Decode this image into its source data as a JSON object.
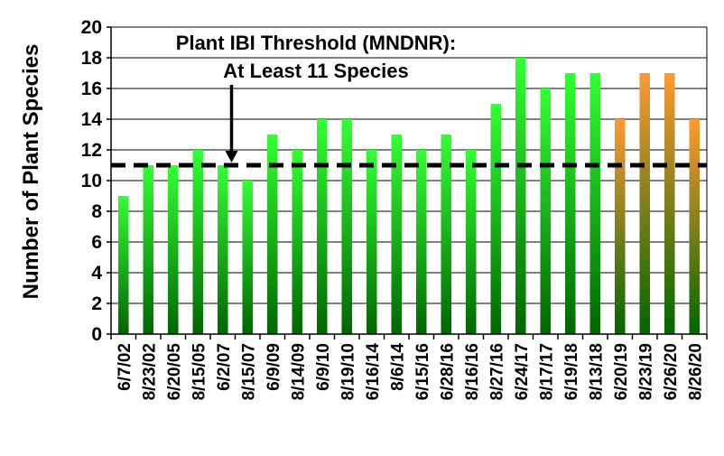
{
  "chart_data": {
    "type": "bar",
    "title": "",
    "xlabel": "",
    "ylabel": "Number of Plant Species",
    "ylim": [
      0,
      20
    ],
    "yticks": [
      0,
      2,
      4,
      6,
      8,
      10,
      12,
      14,
      16,
      18,
      20
    ],
    "grid": true,
    "legend": "none",
    "categories": [
      "6/7/02",
      "8/23/02",
      "6/20/05",
      "8/15/05",
      "6/2/07",
      "8/15/07",
      "6/9/09",
      "8/14/09",
      "6/9/10",
      "8/19/10",
      "6/16/14",
      "8/6/14",
      "6/15/16",
      "6/28/16",
      "8/16/16",
      "8/27/16",
      "6/24/17",
      "8/17/17",
      "6/19/18",
      "8/13/18",
      "6/20/19",
      "8/23/19",
      "6/26/20",
      "8/26/20"
    ],
    "values": [
      9,
      11,
      11,
      12,
      11,
      10,
      13,
      12,
      14,
      14,
      12,
      13,
      12,
      13,
      12,
      15,
      18,
      16,
      17,
      17,
      14,
      17,
      17,
      14
    ],
    "bar_groups": [
      "green",
      "green",
      "green",
      "green",
      "green",
      "green",
      "green",
      "green",
      "green",
      "green",
      "green",
      "green",
      "green",
      "green",
      "green",
      "green",
      "green",
      "green",
      "green",
      "green",
      "orange",
      "orange",
      "orange",
      "orange"
    ],
    "colors": {
      "green_top": "#33ff33",
      "green_bottom": "#006600",
      "orange_top": "#ff9933",
      "orange_bottom": "#006600",
      "threshold_line": "#000000",
      "grid": "#000000"
    },
    "threshold": {
      "value": 11,
      "label_line1": "Plant IBI Threshold (MNDNR):",
      "label_line2": "At Least 11 Species",
      "arrow_category": "6/2/07"
    }
  }
}
